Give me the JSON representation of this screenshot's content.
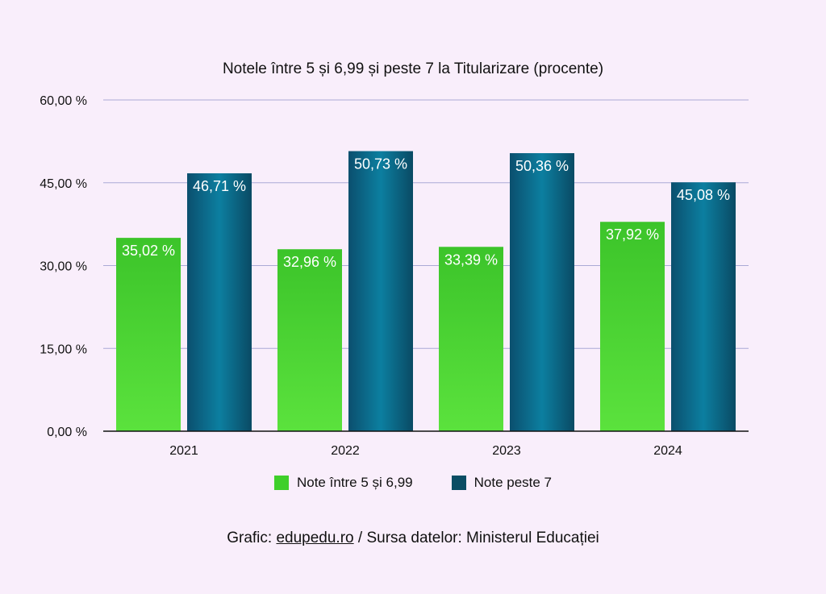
{
  "chart_data": {
    "type": "bar",
    "title": "Notele între 5 și 6,99 și peste 7 la Titularizare (procente)",
    "categories": [
      "2021",
      "2022",
      "2023",
      "2024"
    ],
    "series": [
      {
        "name": "Note între 5 și 6,99",
        "values": [
          35.02,
          32.96,
          33.39,
          37.92
        ],
        "labels": [
          "35,02 %",
          "32,96 %",
          "33,39 %",
          "37,92 %"
        ],
        "color": "#3fcf2a"
      },
      {
        "name": "Note peste 7",
        "values": [
          46.71,
          50.73,
          50.36,
          45.08
        ],
        "labels": [
          "46,71 %",
          "50,73 %",
          "50,36 %",
          "45,08 %"
        ],
        "color": "#0a6e8c"
      }
    ],
    "yticks": [
      "0,00 %",
      "15,00 %",
      "30,00 %",
      "45,00 %",
      "60,00 %"
    ],
    "ylim": [
      0,
      60
    ],
    "grid": true,
    "legend_position": "bottom"
  },
  "footer": {
    "prefix": "Grafic: ",
    "link": "edupedu.ro",
    "suffix": " / Sursa datelor: Ministerul Educației"
  }
}
